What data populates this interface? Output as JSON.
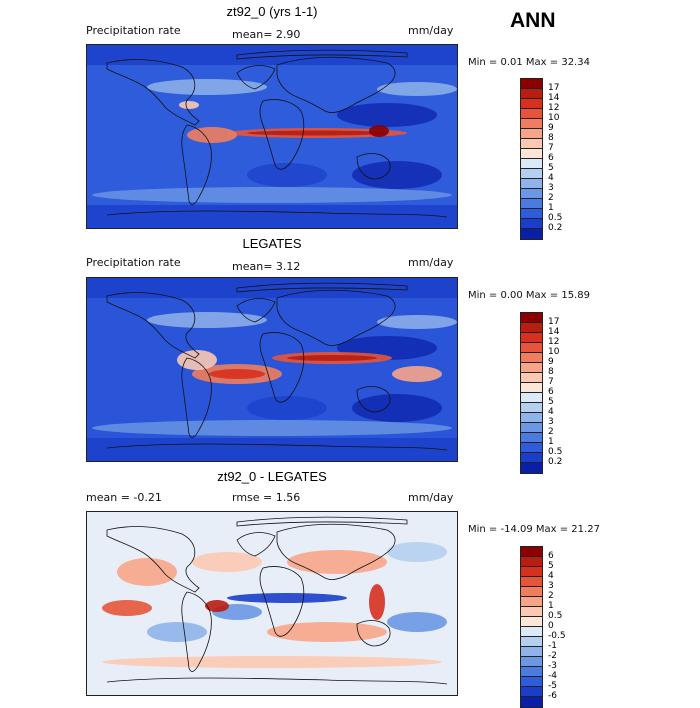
{
  "season": "ANN",
  "panels": [
    {
      "title": "zt92_0 (yrs 1-1)",
      "left_label": "Precipitation rate",
      "center_label": "mean=   2.90",
      "right_label": "mm/day",
      "minmax": "Min =    0.01  Max =   32.34",
      "map_kind": "model",
      "colorbar": {
        "labels": [
          "17",
          "14",
          "12",
          "10",
          "9",
          "8",
          "7",
          "6",
          "5",
          "4",
          "3",
          "2",
          "1",
          "0.5",
          "0.2"
        ],
        "colors": [
          "#8b0000",
          "#b81d12",
          "#d7301f",
          "#e6553a",
          "#f07e5e",
          "#f7a588",
          "#fbc9b3",
          "#fde5d8",
          "#dce9f7",
          "#b5cff0",
          "#8fb3ea",
          "#6c97e4",
          "#4a7be0",
          "#2f5cdb",
          "#1a3ec9",
          "#0a1fa8"
        ]
      }
    },
    {
      "title": "LEGATES",
      "left_label": "Precipitation rate",
      "center_label": "mean=   3.12",
      "right_label": "mm/day",
      "minmax": "Min =    0.00  Max =   15.89",
      "map_kind": "obs",
      "colorbar": {
        "labels": [
          "17",
          "14",
          "12",
          "10",
          "9",
          "8",
          "7",
          "6",
          "5",
          "4",
          "3",
          "2",
          "1",
          "0.5",
          "0.2"
        ],
        "colors": [
          "#8b0000",
          "#b81d12",
          "#d7301f",
          "#e6553a",
          "#f07e5e",
          "#f7a588",
          "#fbc9b3",
          "#fde5d8",
          "#dce9f7",
          "#b5cff0",
          "#8fb3ea",
          "#6c97e4",
          "#4a7be0",
          "#2f5cdb",
          "#1a3ec9",
          "#0a1fa8"
        ]
      }
    },
    {
      "title": "zt92_0 - LEGATES",
      "left_label": "mean =   -0.21",
      "center_label": "rmse =    1.56",
      "right_label": "mm/day",
      "minmax": "Min =  -14.09  Max =   21.27",
      "map_kind": "diff",
      "colorbar": {
        "labels": [
          "6",
          "5",
          "4",
          "3",
          "2",
          "1",
          "0.5",
          "0",
          "-0.5",
          "-1",
          "-2",
          "-3",
          "-4",
          "-5",
          "-6"
        ],
        "colors": [
          "#8b0000",
          "#b81d12",
          "#d7301f",
          "#e6553a",
          "#f07e5e",
          "#f7a588",
          "#fbc9b3",
          "#fde5d8",
          "#dce9f7",
          "#b5cff0",
          "#8fb3ea",
          "#6c97e4",
          "#4a7be0",
          "#2f5cdb",
          "#1a3ec9",
          "#0a1fa8"
        ]
      }
    }
  ]
}
